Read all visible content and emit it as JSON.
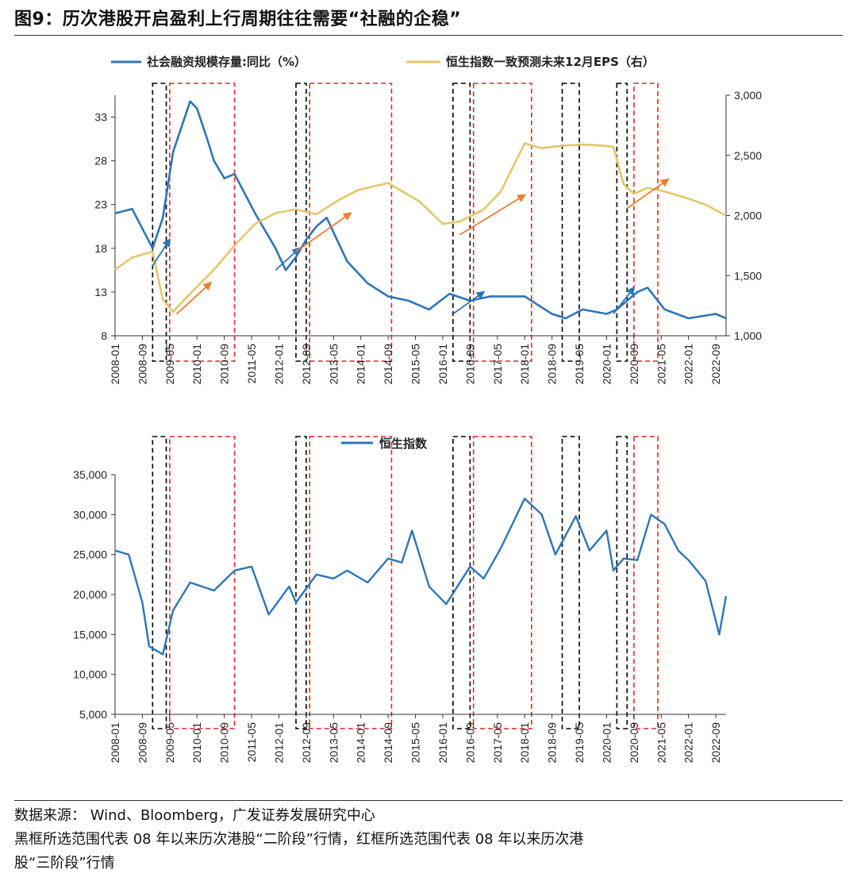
{
  "title": "图9：历次港股开启盈利上行周期往往需要“社融的企稳”",
  "footer": {
    "source": "数据来源： Wind、Bloomberg，广发证券发展研究中心",
    "note_line1": "黑框所选范围代表 08 年以来历次港股“二阶段”行情，红框所选范围代表 08 年以来历次港",
    "note_line2": "股“三阶段”行情"
  },
  "colors": {
    "blue": "#2e75b6",
    "gold": "#e2c76b",
    "arrow": "#ed7d31",
    "black_box": "#000000",
    "red_box": "#e32222"
  },
  "chart_data": [
    {
      "type": "line",
      "x_tick_labels": [
        "2008-01",
        "2008-09",
        "2009-05",
        "2010-01",
        "2010-09",
        "2011-05",
        "2012-01",
        "2012-09",
        "2013-05",
        "2014-01",
        "2014-09",
        "2015-05",
        "2016-01",
        "2016-09",
        "2017-05",
        "2018-01",
        "2018-09",
        "2019-05",
        "2020-01",
        "2020-09",
        "2021-05",
        "2022-01",
        "2022-09"
      ],
      "y_left": {
        "ticks": [
          8,
          13,
          18,
          23,
          28,
          33
        ],
        "range": [
          8,
          35.5
        ]
      },
      "y_right": {
        "ticks": [
          "1,000",
          "1,500",
          "2,000",
          "2,500",
          "3,000"
        ],
        "range": [
          1000,
          3000
        ]
      },
      "series": [
        {
          "name": "社会融资规模存量:同比（%）",
          "axis": "left",
          "x": [
            "2008-01",
            "2008-06",
            "2008-12",
            "2009-03",
            "2009-06",
            "2009-11",
            "2010-01",
            "2010-04",
            "2010-06",
            "2010-09",
            "2010-12",
            "2011-06",
            "2011-12",
            "2012-03",
            "2012-06",
            "2012-09",
            "2012-12",
            "2013-03",
            "2013-09",
            "2014-03",
            "2014-09",
            "2015-03",
            "2015-09",
            "2016-03",
            "2016-09",
            "2017-03",
            "2018-01",
            "2018-09",
            "2019-01",
            "2019-06",
            "2020-01",
            "2020-04",
            "2020-10",
            "2021-01",
            "2021-06",
            "2022-01",
            "2022-09",
            "2022-12"
          ],
          "values": [
            22,
            22.5,
            18,
            21.5,
            29,
            34.8,
            34,
            30.5,
            28,
            26,
            26.5,
            22,
            18,
            15.5,
            17,
            19,
            20.5,
            21.5,
            16.5,
            14,
            12.5,
            12,
            11,
            12.8,
            12,
            12.5,
            12.5,
            10.5,
            10,
            11,
            10.5,
            11,
            13,
            13.5,
            11,
            10,
            10.5,
            10
          ]
        },
        {
          "name": "恒生指数一致预测未来12月EPS（右）",
          "axis": "right",
          "x": [
            "2008-01",
            "2008-06",
            "2008-12",
            "2009-03",
            "2009-06",
            "2009-11",
            "2010-06",
            "2010-12",
            "2011-06",
            "2011-12",
            "2012-06",
            "2012-12",
            "2013-06",
            "2013-12",
            "2014-09",
            "2015-06",
            "2016-01",
            "2016-06",
            "2017-01",
            "2017-06",
            "2018-01",
            "2018-06",
            "2018-12",
            "2019-06",
            "2019-12",
            "2020-03",
            "2020-06",
            "2020-09",
            "2021-01",
            "2021-06",
            "2022-01",
            "2022-06",
            "2022-12"
          ],
          "values": [
            1550,
            1650,
            1700,
            1300,
            1200,
            1350,
            1550,
            1750,
            1930,
            2020,
            2050,
            2010,
            2120,
            2210,
            2270,
            2120,
            1930,
            1950,
            2050,
            2200,
            2600,
            2560,
            2580,
            2590,
            2580,
            2570,
            2260,
            2180,
            2230,
            2200,
            2140,
            2090,
            2000
          ]
        }
      ]
    },
    {
      "type": "line",
      "x_tick_labels": [
        "2008-01",
        "2008-09",
        "2009-05",
        "2010-01",
        "2010-09",
        "2011-05",
        "2012-01",
        "2012-09",
        "2013-05",
        "2014-01",
        "2014-09",
        "2015-05",
        "2016-01",
        "2016-09",
        "2017-05",
        "2018-01",
        "2018-09",
        "2019-05",
        "2020-01",
        "2020-09",
        "2021-05",
        "2022-01",
        "2022-09"
      ],
      "y_ticks": [
        "5,000",
        "10,000",
        "15,000",
        "20,000",
        "25,000",
        "30,000",
        "35,000"
      ],
      "y_range": [
        5000,
        35000
      ],
      "series": [
        {
          "name": "恒生指数",
          "x": [
            "2008-01",
            "2008-05",
            "2008-09",
            "2008-11",
            "2009-03",
            "2009-06",
            "2009-11",
            "2010-06",
            "2010-12",
            "2011-05",
            "2011-10",
            "2012-04",
            "2012-06",
            "2012-12",
            "2013-05",
            "2013-09",
            "2014-03",
            "2014-09",
            "2015-01",
            "2015-04",
            "2015-09",
            "2016-02",
            "2016-09",
            "2017-01",
            "2017-06",
            "2018-01",
            "2018-06",
            "2018-10",
            "2019-04",
            "2019-08",
            "2020-01",
            "2020-03",
            "2020-06",
            "2020-10",
            "2021-02",
            "2021-06",
            "2021-10",
            "2022-01",
            "2022-06",
            "2022-10",
            "2022-12"
          ],
          "values": [
            25500,
            25000,
            19000,
            13500,
            12500,
            18000,
            21500,
            20500,
            23000,
            23500,
            17500,
            21000,
            19000,
            22500,
            22000,
            23000,
            21500,
            24500,
            24000,
            28000,
            21000,
            18800,
            23500,
            22000,
            25800,
            32000,
            30000,
            25000,
            29800,
            25500,
            28000,
            23000,
            24500,
            24300,
            30000,
            28800,
            25500,
            24300,
            21700,
            15000,
            19800
          ]
        }
      ]
    }
  ],
  "legend": {
    "top_left": "社会融资规模存量:同比（%）",
    "top_right": "恒生指数一致预测未来12月EPS（右）",
    "bottom": "恒生指数"
  },
  "black_boxes": [
    [
      "2008-12",
      "2009-04"
    ],
    [
      "2012-06",
      "2012-09"
    ],
    [
      "2016-04",
      "2016-09"
    ],
    [
      "2018-12",
      "2019-05"
    ],
    [
      "2020-04",
      "2020-07"
    ]
  ],
  "red_boxes": [
    [
      "2009-05",
      "2010-12"
    ],
    [
      "2012-10",
      "2014-10"
    ],
    [
      "2016-10",
      "2018-03"
    ],
    [
      "2020-09",
      "2021-04"
    ]
  ],
  "arrows_top": [
    {
      "axis": "left",
      "from": [
        "2008-12",
        16
      ],
      "to": [
        "2009-05",
        19
      ]
    },
    {
      "axis": "right",
      "from": [
        "2009-07",
        1180
      ],
      "to": [
        "2010-05",
        1440
      ]
    },
    {
      "axis": "left",
      "from": [
        "2011-12",
        15.5
      ],
      "to": [
        "2012-07",
        18
      ]
    },
    {
      "axis": "right",
      "from": [
        "2012-06",
        1700
      ],
      "to": [
        "2013-10",
        2020
      ]
    },
    {
      "axis": "left",
      "from": [
        "2016-04",
        10.5
      ],
      "to": [
        "2017-01",
        13
      ]
    },
    {
      "axis": "right",
      "from": [
        "2016-06",
        1840
      ],
      "to": [
        "2018-01",
        2170
      ]
    },
    {
      "axis": "left",
      "from": [
        "2020-03",
        10.5
      ],
      "to": [
        "2020-09",
        13.5
      ]
    },
    {
      "axis": "right",
      "from": [
        "2020-07",
        2060
      ],
      "to": [
        "2021-07",
        2300
      ]
    }
  ]
}
